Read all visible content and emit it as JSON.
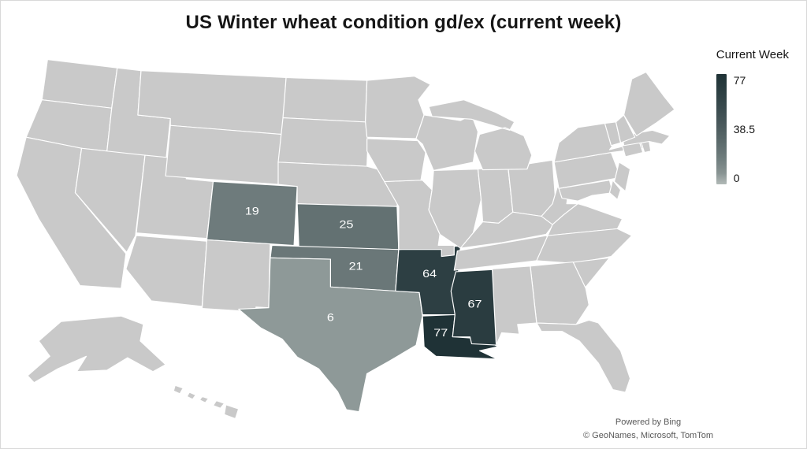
{
  "title": "US Winter wheat condition gd/ex (current week)",
  "legend": {
    "title": "Current Week",
    "labels": {
      "max": "77",
      "mid": "38.5",
      "min": "0"
    }
  },
  "attribution": {
    "line1": "Powered by Bing",
    "line2": "© GeoNames, Microsoft, TomTom"
  },
  "colors": {
    "state_default": "#c9c9c9",
    "state_border": "#ffffff",
    "scale_min_color": "#b2bab8",
    "scale_max_color": "#1f3236",
    "value_label_text": "#ffffff",
    "attribution_text": "#595959",
    "background": "#ffffff"
  },
  "chart_data": {
    "type": "choropleth",
    "title": "US Winter wheat condition gd/ex (current week)",
    "measure": "Current Week",
    "region_level": "US state",
    "scale": {
      "min": 0,
      "mid": 38.5,
      "max": 77
    },
    "legend_position": "right",
    "no_data_fill": "gray",
    "values": [
      {
        "state": "Colorado",
        "abbr": "CO",
        "value": 19
      },
      {
        "state": "Kansas",
        "abbr": "KS",
        "value": 25
      },
      {
        "state": "Oklahoma",
        "abbr": "OK",
        "value": 21
      },
      {
        "state": "Texas",
        "abbr": "TX",
        "value": 6
      },
      {
        "state": "Arkansas",
        "abbr": "AR",
        "value": 64
      },
      {
        "state": "Mississippi",
        "abbr": "MS",
        "value": 67
      },
      {
        "state": "Louisiana",
        "abbr": "LA",
        "value": 77
      }
    ]
  }
}
